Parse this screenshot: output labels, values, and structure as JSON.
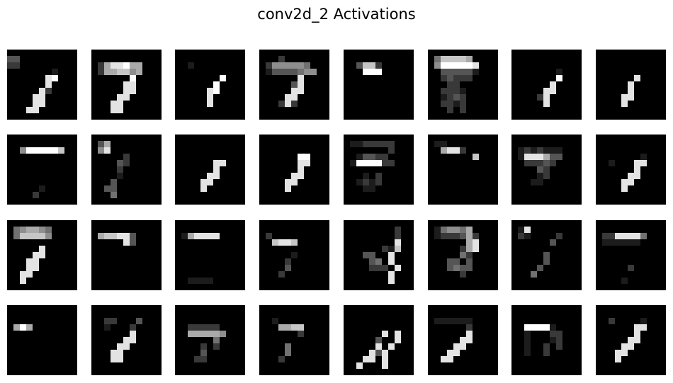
{
  "title": "conv2d_2 Activations",
  "grid": {
    "rows": 4,
    "cols": 8,
    "map_size": 11
  },
  "colormap": "gray",
  "maps": [
    {
      "index": 1,
      "activations": [
        "00000000000",
        "33000000000",
        "22000000000",
        "00000001000",
        "00000089000",
        "00000080000",
        "00000820000",
        "00008800000",
        "00008800000",
        "00088000000",
        "00000000000"
      ]
    },
    {
      "index": 2,
      "activations": [
        "00000000000",
        "00000000000",
        "02688966000",
        "02667756000",
        "00000090000",
        "00000880000",
        "00000880000",
        "00008800000",
        "00088000000",
        "00088000000",
        "00000000000"
      ]
    },
    {
      "index": 3,
      "activations": [
        "00000000000",
        "00000000000",
        "00100000000",
        "00000000000",
        "00000009000",
        "00000090000",
        "00000890000",
        "00000800000",
        "00000800000",
        "00000000000",
        "00000000000"
      ]
    },
    {
      "index": 4,
      "activations": [
        "00000000000",
        "00020000000",
        "02555554000",
        "01333345500",
        "00000080000",
        "00000380000",
        "00000880000",
        "00008800000",
        "00028200000",
        "00000000000",
        "00000000000"
      ]
    },
    {
      "index": 5,
      "activations": [
        "00000000000",
        "00000000000",
        "00377200000",
        "00099900000",
        "00000000000",
        "00000000000",
        "00000000000",
        "00000000000",
        "00000000000",
        "00000000000",
        "00000000000"
      ]
    },
    {
      "index": 6,
      "activations": [
        "00000000000",
        "04777760000",
        "05999998000",
        "00333331000",
        "00232220000",
        "00022000000",
        "00222100000",
        "00123200000",
        "00221200000",
        "00020200000",
        "00000000000"
      ]
    },
    {
      "index": 7,
      "activations": [
        "00000000000",
        "00000000000",
        "00000000000",
        "00000001000",
        "00000009000",
        "00000080000",
        "00000880000",
        "00002800000",
        "00000800000",
        "00000000000",
        "00000000000"
      ]
    },
    {
      "index": 8,
      "activations": [
        "00000000000",
        "00000000000",
        "00000000000",
        "00000000000",
        "00000080000",
        "00000800000",
        "00000800000",
        "00008800000",
        "00008000000",
        "00000000000",
        "00000000000"
      ]
    },
    {
      "index": 9,
      "activations": [
        "00000000000",
        "00000000000",
        "00599999700",
        "00000000000",
        "00000000000",
        "00000000000",
        "00000000000",
        "00000000000",
        "00000100000",
        "00002000000",
        "00000000000"
      ]
    },
    {
      "index": 10,
      "activations": [
        "00000000000",
        "03600000000",
        "05800000000",
        "00000200000",
        "00003200000",
        "00002000000",
        "00001000000",
        "00030000000",
        "00330000000",
        "00040000000",
        "00000000000"
      ]
    },
    {
      "index": 11,
      "activations": [
        "00000000000",
        "00000000000",
        "00000000000",
        "00000000000",
        "00000088000",
        "00000080000",
        "00000880000",
        "00008800000",
        "00008000000",
        "00000000000",
        "00000000000"
      ]
    },
    {
      "index": 12,
      "activations": [
        "00000000000",
        "00000000000",
        "00000000000",
        "00000099000",
        "00000088000",
        "00000080000",
        "00000880000",
        "00008800000",
        "00008000000",
        "00000000000",
        "00000000000"
      ]
    },
    {
      "index": 13,
      "activations": [
        "00000000000",
        "01122222000",
        "00000002000",
        "00133220000",
        "01999922000",
        "00000000000",
        "00010200000",
        "00121200000",
        "00011000000",
        "00000000000",
        "00000000000"
      ]
    },
    {
      "index": 14,
      "activations": [
        "00000000000",
        "01100000000",
        "00688200000",
        "00000007000",
        "00000000000",
        "00000000000",
        "00000000000",
        "00000000000",
        "00000000000",
        "00000000000",
        "00000000000"
      ]
    },
    {
      "index": 15,
      "activations": [
        "00000000000",
        "00000000000",
        "01212111000",
        "01888633000",
        "00222320000",
        "00003200000",
        "00001200000",
        "00011000000",
        "00000000000",
        "00000000000",
        "00000000000"
      ]
    },
    {
      "index": 16,
      "activations": [
        "00000000000",
        "00000000000",
        "00000000000",
        "00000001000",
        "00100088000",
        "00000080000",
        "00000880000",
        "00008800000",
        "00008000000",
        "00000000000",
        "00000000000"
      ]
    },
    {
      "index": 17,
      "activations": [
        "00000000000",
        "04566540000",
        "04777750000",
        "00000000000",
        "00000800000",
        "00008800000",
        "00088000000",
        "00088000000",
        "00880000000",
        "00800000000",
        "00000000000"
      ]
    },
    {
      "index": 18,
      "activations": [
        "00000000000",
        "00000000000",
        "06778830000",
        "00000830000",
        "00000000000",
        "00000000000",
        "00000000000",
        "00000000000",
        "00000000000",
        "00000000000",
        "00000000000"
      ]
    },
    {
      "index": 19,
      "activations": [
        "00000000000",
        "00000000000",
        "01688880000",
        "00000000000",
        "00000000000",
        "00000000000",
        "00000000000",
        "00000000000",
        "00000000000",
        "00111100000",
        "00000000000"
      ]
    },
    {
      "index": 20,
      "activations": [
        "00000000000",
        "00000000000",
        "02000000000",
        "00788700000",
        "00000000000",
        "00000100000",
        "00002000000",
        "00003000000",
        "00020000000",
        "00000000000",
        "00000000000"
      ]
    },
    {
      "index": 21,
      "activations": [
        "00000000000",
        "00000000200",
        "00000000200",
        "00000000800",
        "00000021700",
        "00033008000",
        "00003408000",
        "00002220800",
        "00000008000",
        "00000008000",
        "00000000000"
      ]
    },
    {
      "index": 22,
      "activations": [
        "00000000000",
        "01455460000",
        "01222362000",
        "00000068000",
        "00000268000",
        "00000420000",
        "00033030000",
        "00034330000",
        "00000200000",
        "00000000000",
        "00000000000"
      ]
    },
    {
      "index": 23,
      "activations": [
        "00000000000",
        "01800000000",
        "02100002000",
        "00000030000",
        "00000000000",
        "00000300000",
        "00000300000",
        "00003000000",
        "00040000000",
        "00000000000",
        "00000000000"
      ]
    },
    {
      "index": 24,
      "activations": [
        "00000000000",
        "00000000000",
        "02288884000",
        "01111110000",
        "00000000000",
        "00000000000",
        "00000000000",
        "00000200000",
        "00000000000",
        "00001000000",
        "00000000000"
      ]
    },
    {
      "index": 25,
      "activations": [
        "00000000000",
        "00000000000",
        "00000000000",
        "06960000000",
        "00000000000",
        "00000000000",
        "00000000000",
        "00000000000",
        "00000000000",
        "00000000000",
        "00000000000"
      ]
    },
    {
      "index": 26,
      "activations": [
        "00000000000",
        "00000000000",
        "00220003000",
        "00100020000",
        "00000080000",
        "00000880000",
        "00008800000",
        "00088000000",
        "00088000000",
        "00000000000",
        "00000000000"
      ]
    },
    {
      "index": 27,
      "activations": [
        "00000000000",
        "00000000000",
        "00000000000",
        "00222220000",
        "00666665000",
        "00000040000",
        "00002020000",
        "00003000000",
        "00022000000",
        "00000000000",
        "00000000000"
      ]
    },
    {
      "index": 28,
      "activations": [
        "00000000000",
        "00000000000",
        "00100000000",
        "00066770000",
        "00000020000",
        "00000000000",
        "00004000000",
        "00004000000",
        "00020000000",
        "00000000000",
        "00000000000"
      ]
    },
    {
      "index": 29,
      "activations": [
        "00000000000",
        "00000000000",
        "00000000000",
        "00000000000",
        "00000080800",
        "00000300800",
        "00000808000",
        "00008380000",
        "00088080000",
        "00800080000",
        "00000000000"
      ]
    },
    {
      "index": 30,
      "activations": [
        "00000000000",
        "00000000000",
        "01111110000",
        "00000020000",
        "00000080000",
        "00000880000",
        "00008800000",
        "00088000000",
        "00880000000",
        "00000000000",
        "00000000000"
      ]
    },
    {
      "index": 31,
      "activations": [
        "00000000000",
        "00000000000",
        "00000000000",
        "00999910000",
        "00100022000",
        "00100012000",
        "00100202000",
        "00100200000",
        "00000000000",
        "00000000000",
        "00000000000"
      ]
    },
    {
      "index": 32,
      "activations": [
        "00000000000",
        "00000000000",
        "00200001000",
        "00000088000",
        "00000080000",
        "00000880000",
        "00008800000",
        "00088000000",
        "00080000000",
        "00000000000",
        "00000000000"
      ]
    }
  ]
}
